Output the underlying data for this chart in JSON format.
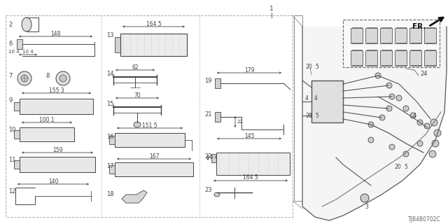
{
  "diagram_code": "TJB4B0702C",
  "bg_color": "#ffffff",
  "lc": "#444444",
  "gc": "#888888"
}
